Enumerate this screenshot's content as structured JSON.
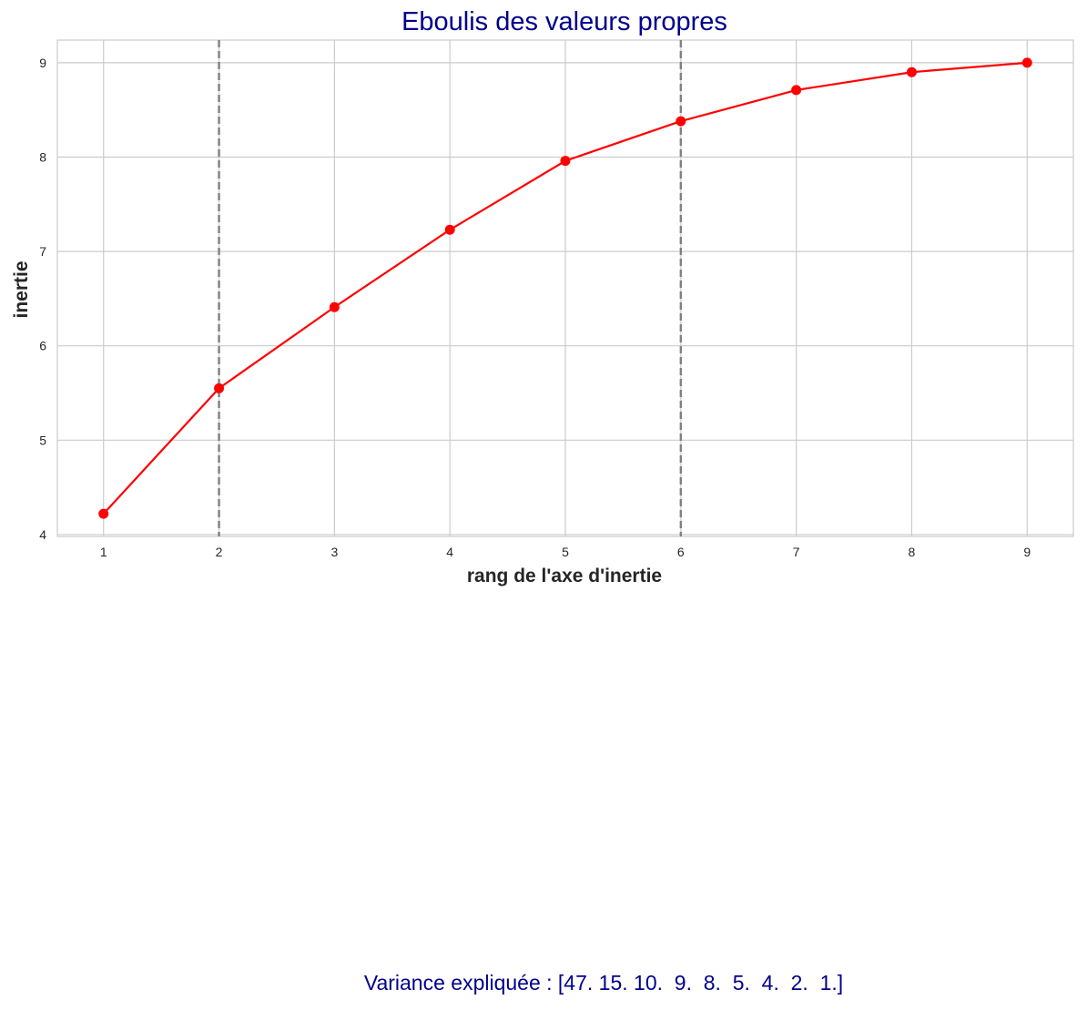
{
  "chart_data": {
    "type": "line",
    "title": "Eboulis des valeurs propres",
    "xlabel": "rang de l'axe d'inertie",
    "ylabel": "inertie",
    "x": [
      1,
      2,
      3,
      4,
      5,
      6,
      7,
      8,
      9
    ],
    "series": [
      {
        "values": [
          4.22,
          5.55,
          6.41,
          7.23,
          7.96,
          8.38,
          8.71,
          8.9,
          9.0
        ],
        "color": "#ff0000"
      }
    ],
    "x_ticks": [
      "1",
      "2",
      "3",
      "4",
      "5",
      "6",
      "7",
      "8",
      "9"
    ],
    "y_ticks": [
      "4",
      "5",
      "6",
      "7",
      "8",
      "9"
    ],
    "xlim": [
      0.6,
      9.4
    ],
    "ylim": [
      3.98,
      9.24
    ],
    "vlines": [
      2,
      6
    ],
    "vline_color": "#808080",
    "grid": true
  },
  "footnote": "Variance expliquée : [47. 15. 10.  9.  8.  5.  4.  2.  1.]"
}
